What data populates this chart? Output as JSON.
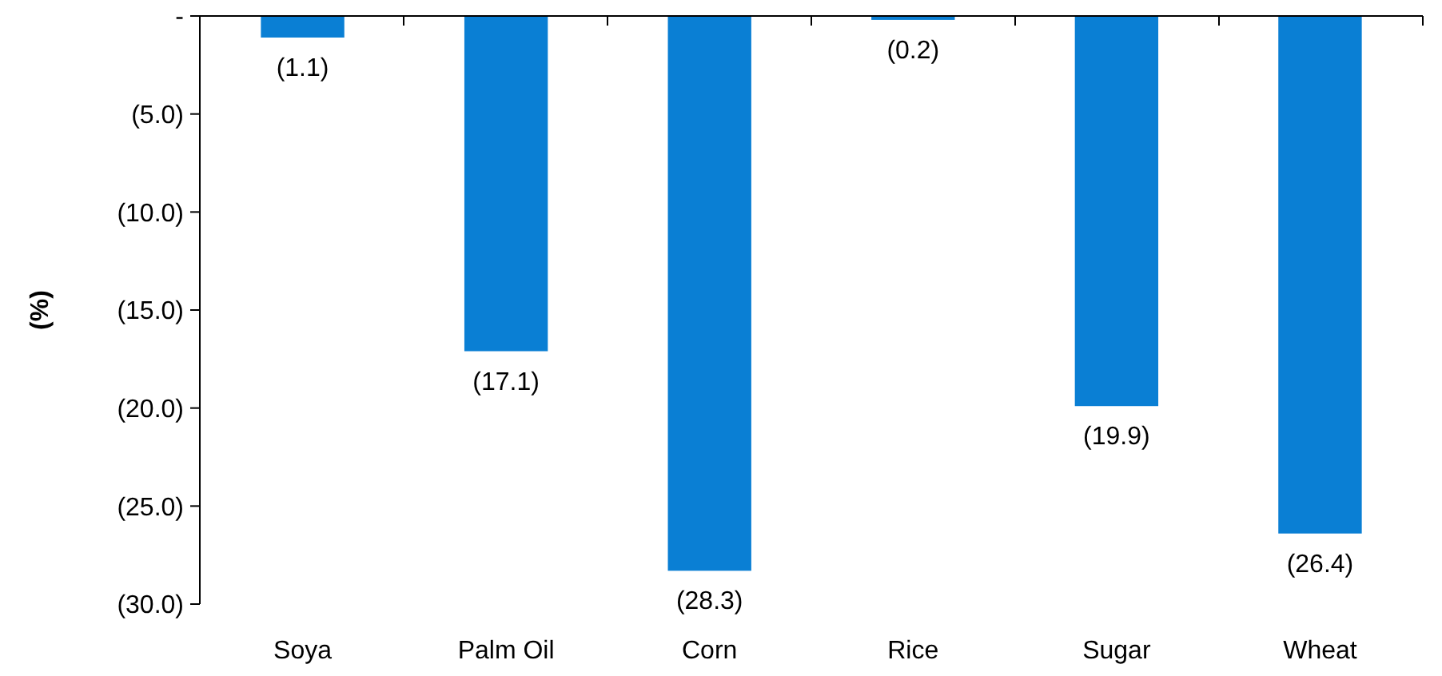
{
  "chart_data": {
    "type": "bar",
    "ylabel": "(%)",
    "categories": [
      "Soya",
      "Palm Oil",
      "Corn",
      "Rice",
      "Sugar",
      "Wheat"
    ],
    "values": [
      -1.1,
      -17.1,
      -28.3,
      -0.2,
      -19.9,
      -26.4
    ],
    "value_labels": [
      "(1.1)",
      "(17.1)",
      "(28.3)",
      "(0.2)",
      "(19.9)",
      "(26.4)"
    ],
    "color": "#0a7fd4",
    "ylim": [
      -30,
      0
    ],
    "yticks": [
      {
        "value": 0,
        "label": "-"
      },
      {
        "value": -5,
        "label": "(5.0)"
      },
      {
        "value": -10,
        "label": "(10.0)"
      },
      {
        "value": -15,
        "label": "(15.0)"
      },
      {
        "value": -20,
        "label": "(20.0)"
      },
      {
        "value": -25,
        "label": "(25.0)"
      },
      {
        "value": -30,
        "label": "(30.0)"
      }
    ],
    "grid": false
  }
}
